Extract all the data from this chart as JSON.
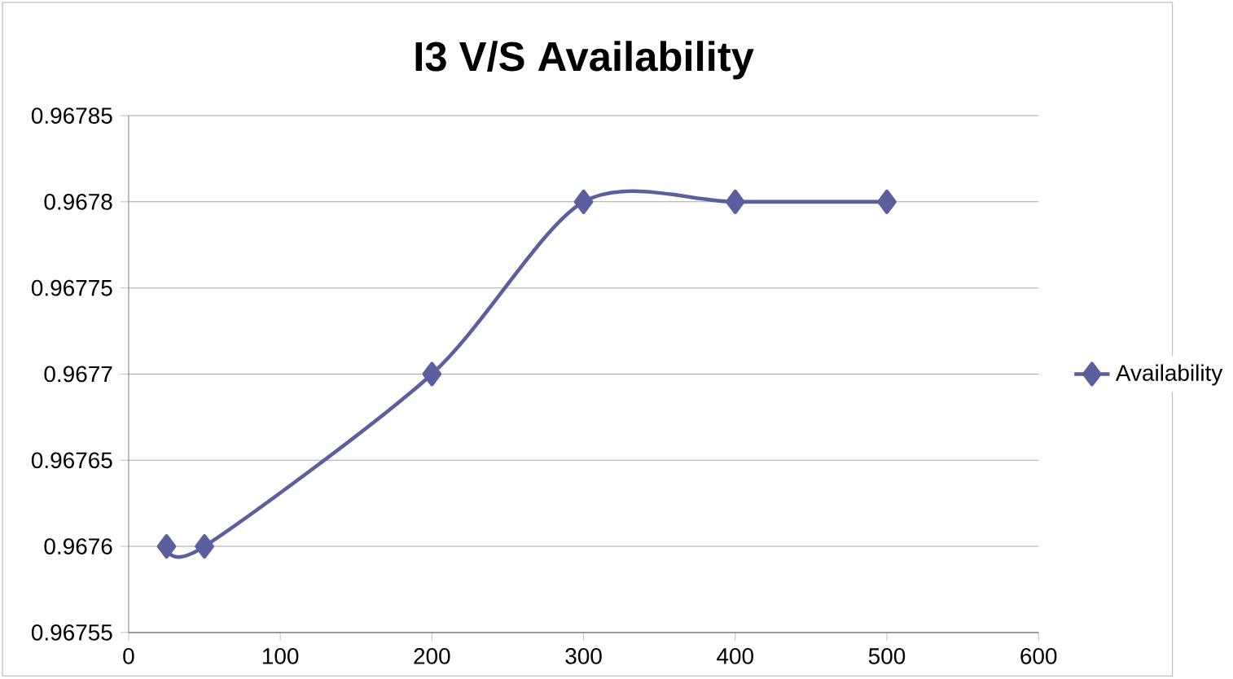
{
  "chart_data": {
    "type": "line",
    "title": "I3 V/S Availability",
    "x": [
      25,
      50,
      200,
      300,
      400,
      500
    ],
    "series": [
      {
        "name": "Availability",
        "color": "#5b5f9e",
        "values": [
          0.9676,
          0.9676,
          0.9677,
          0.9678,
          0.9678,
          0.9678
        ]
      }
    ],
    "xlim": [
      0,
      600
    ],
    "xticks": [
      0,
      100,
      200,
      300,
      400,
      500,
      600
    ],
    "ylim": [
      0.96755,
      0.96785
    ],
    "yticks": [
      0.96755,
      0.9676,
      0.96765,
      0.9677,
      0.96775,
      0.9678,
      0.96785
    ],
    "grid": "y",
    "legend": "right",
    "marker": "diamond",
    "line_style": "solid"
  }
}
